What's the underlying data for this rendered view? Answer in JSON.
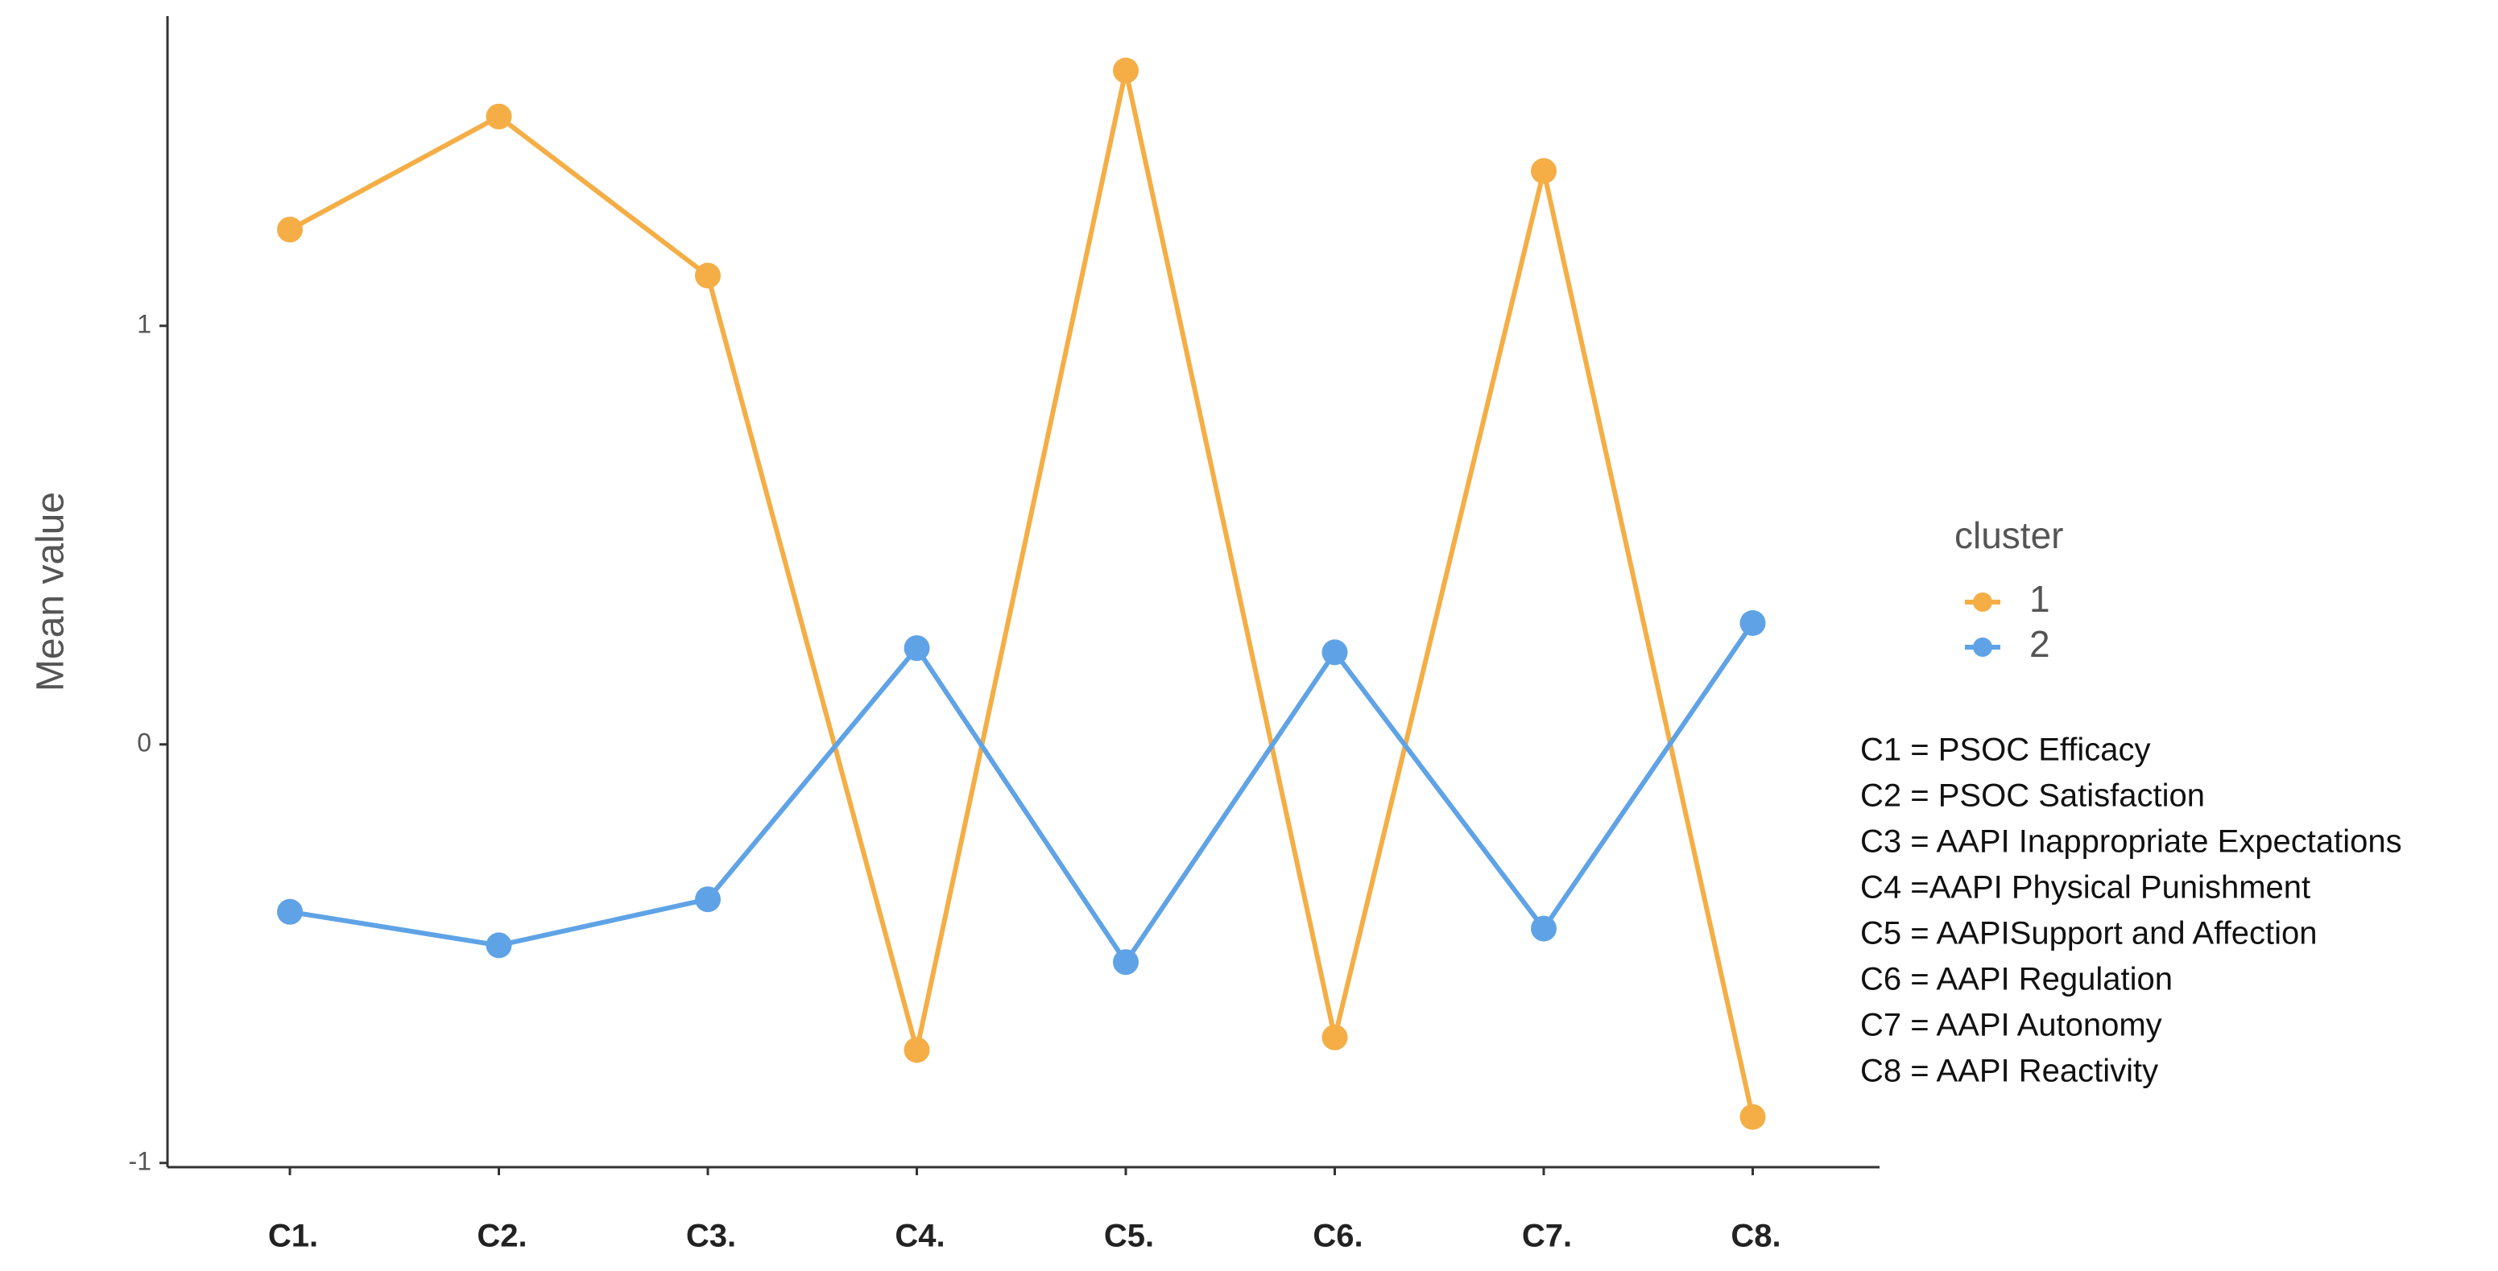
{
  "chart_data": {
    "type": "line",
    "y_label": "Mean value",
    "categories": [
      "C1.",
      "C2.",
      "C3.",
      "C4.",
      "C5.",
      "C6.",
      "C7.",
      "C8."
    ],
    "series": [
      {
        "name": "1",
        "color": "#f4ae45",
        "values": [
          1.23,
          1.5,
          1.12,
          -0.73,
          1.61,
          -0.7,
          1.37,
          -0.89
        ]
      },
      {
        "name": "2",
        "color": "#5fa3e6",
        "values": [
          -0.4,
          -0.48,
          -0.37,
          0.23,
          -0.52,
          0.22,
          -0.44,
          0.29
        ]
      }
    ],
    "ylim": [
      -1.01,
      1.74
    ],
    "yticks": [
      -1,
      0,
      1
    ],
    "legend_title": "cluster",
    "notes": [
      "C1 = PSOC Efficacy",
      "C2 = PSOC Satisfaction",
      "C3 = AAPI Inappropriate Expectations",
      "C4 =AAPI Physical Punishment",
      "C5 = AAPISupport and Affection",
      "C6 = AAPI Regulation",
      "C7 = AAPI Autonomy",
      "C8 = AAPI Reactivity"
    ]
  }
}
